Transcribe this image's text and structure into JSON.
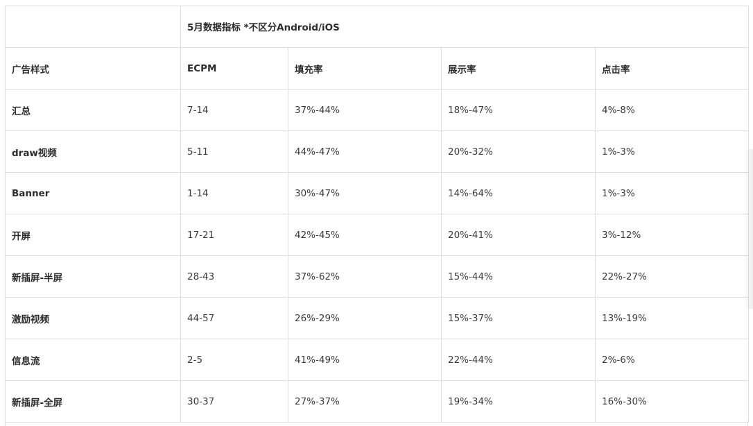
{
  "table": {
    "title": "5月数据指标 *不区分Android/iOS",
    "columns": [
      "广告样式",
      "ECPM",
      "填充率",
      "展示率",
      "点击率"
    ],
    "rows": [
      {
        "type": "汇总",
        "ecpm": "7-14",
        "fill_rate": "37%-44%",
        "show_rate": "18%-47%",
        "click_rate": "4%-8%"
      },
      {
        "type": "draw视频",
        "ecpm": "5-11",
        "fill_rate": "44%-47%",
        "show_rate": "20%-32%",
        "click_rate": "1%-3%"
      },
      {
        "type": "Banner",
        "ecpm": "1-14",
        "fill_rate": "30%-47%",
        "show_rate": "14%-64%",
        "click_rate": "1%-3%"
      },
      {
        "type": "开屏",
        "ecpm": "17-21",
        "fill_rate": "42%-45%",
        "show_rate": "20%-41%",
        "click_rate": "3%-12%"
      },
      {
        "type": "新插屏-半屏",
        "ecpm": "28-43",
        "fill_rate": "37%-62%",
        "show_rate": "15%-44%",
        "click_rate": "22%-27%"
      },
      {
        "type": "激励视频",
        "ecpm": "44-57",
        "fill_rate": "26%-29%",
        "show_rate": "15%-37%",
        "click_rate": "13%-19%"
      },
      {
        "type": "信息流",
        "ecpm": "2-5",
        "fill_rate": "41%-49%",
        "show_rate": "22%-44%",
        "click_rate": "2%-6%"
      },
      {
        "type": "新插屏-全屏",
        "ecpm": "30-37",
        "fill_rate": "27%-37%",
        "show_rate": "19%-34%",
        "click_rate": "16%-30%"
      }
    ]
  }
}
